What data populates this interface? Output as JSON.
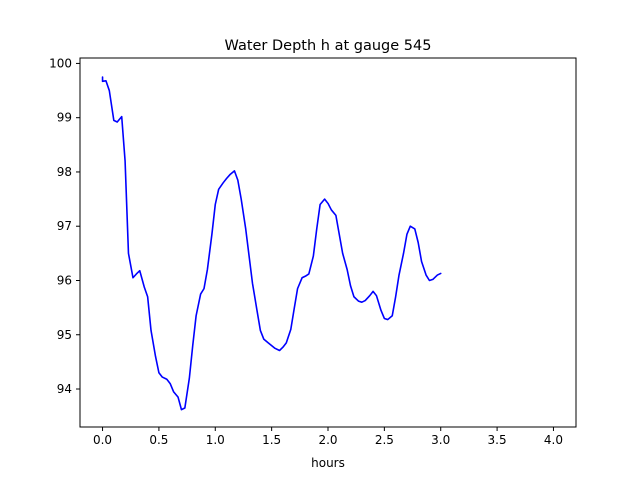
{
  "chart_data": {
    "type": "line",
    "title": "Water Depth h at gauge 545",
    "xlabel": "hours",
    "ylabel": "",
    "xlim": [
      -0.2,
      4.2
    ],
    "ylim": [
      93.3,
      100.1
    ],
    "xticks": [
      0.0,
      0.5,
      1.0,
      1.5,
      2.0,
      2.5,
      3.0,
      3.5,
      4.0
    ],
    "xtick_labels": [
      "0.0",
      "0.5",
      "1.0",
      "1.5",
      "2.0",
      "2.5",
      "3.0",
      "3.5",
      "4.0"
    ],
    "yticks": [
      94,
      95,
      96,
      97,
      98,
      99,
      100
    ],
    "ytick_labels": [
      "94",
      "95",
      "96",
      "97",
      "98",
      "99",
      "100"
    ],
    "grid": false,
    "series": [
      {
        "color": "#0000ff",
        "points": [
          [
            0.0,
            99.75
          ],
          [
            0.0,
            99.67
          ],
          [
            0.03,
            99.68
          ],
          [
            0.06,
            99.5
          ],
          [
            0.1,
            98.95
          ],
          [
            0.13,
            98.92
          ],
          [
            0.17,
            99.02
          ],
          [
            0.2,
            98.2
          ],
          [
            0.23,
            96.5
          ],
          [
            0.27,
            96.05
          ],
          [
            0.3,
            96.12
          ],
          [
            0.33,
            96.18
          ],
          [
            0.37,
            95.88
          ],
          [
            0.4,
            95.7
          ],
          [
            0.43,
            95.08
          ],
          [
            0.47,
            94.6
          ],
          [
            0.5,
            94.3
          ],
          [
            0.53,
            94.22
          ],
          [
            0.57,
            94.18
          ],
          [
            0.6,
            94.1
          ],
          [
            0.63,
            93.95
          ],
          [
            0.67,
            93.85
          ],
          [
            0.7,
            93.62
          ],
          [
            0.73,
            93.65
          ],
          [
            0.77,
            94.2
          ],
          [
            0.8,
            94.8
          ],
          [
            0.83,
            95.35
          ],
          [
            0.87,
            95.75
          ],
          [
            0.9,
            95.85
          ],
          [
            0.93,
            96.2
          ],
          [
            0.97,
            96.85
          ],
          [
            1.0,
            97.4
          ],
          [
            1.03,
            97.68
          ],
          [
            1.07,
            97.8
          ],
          [
            1.1,
            97.88
          ],
          [
            1.13,
            97.95
          ],
          [
            1.17,
            98.02
          ],
          [
            1.2,
            97.85
          ],
          [
            1.23,
            97.5
          ],
          [
            1.27,
            96.95
          ],
          [
            1.3,
            96.45
          ],
          [
            1.33,
            95.95
          ],
          [
            1.37,
            95.45
          ],
          [
            1.4,
            95.08
          ],
          [
            1.43,
            94.92
          ],
          [
            1.47,
            94.85
          ],
          [
            1.5,
            94.8
          ],
          [
            1.53,
            94.75
          ],
          [
            1.57,
            94.71
          ],
          [
            1.6,
            94.77
          ],
          [
            1.63,
            94.85
          ],
          [
            1.67,
            95.1
          ],
          [
            1.7,
            95.48
          ],
          [
            1.73,
            95.85
          ],
          [
            1.77,
            96.05
          ],
          [
            1.8,
            96.08
          ],
          [
            1.83,
            96.12
          ],
          [
            1.87,
            96.45
          ],
          [
            1.9,
            96.95
          ],
          [
            1.93,
            97.4
          ],
          [
            1.97,
            97.5
          ],
          [
            2.0,
            97.42
          ],
          [
            2.03,
            97.3
          ],
          [
            2.07,
            97.2
          ],
          [
            2.1,
            96.85
          ],
          [
            2.13,
            96.5
          ],
          [
            2.17,
            96.2
          ],
          [
            2.2,
            95.9
          ],
          [
            2.23,
            95.7
          ],
          [
            2.27,
            95.62
          ],
          [
            2.3,
            95.6
          ],
          [
            2.33,
            95.63
          ],
          [
            2.37,
            95.72
          ],
          [
            2.4,
            95.8
          ],
          [
            2.43,
            95.72
          ],
          [
            2.47,
            95.45
          ],
          [
            2.5,
            95.3
          ],
          [
            2.53,
            95.28
          ],
          [
            2.57,
            95.35
          ],
          [
            2.6,
            95.7
          ],
          [
            2.63,
            96.1
          ],
          [
            2.67,
            96.5
          ],
          [
            2.7,
            96.85
          ],
          [
            2.73,
            97.0
          ],
          [
            2.77,
            96.95
          ],
          [
            2.8,
            96.7
          ],
          [
            2.83,
            96.35
          ],
          [
            2.87,
            96.1
          ],
          [
            2.9,
            96.0
          ],
          [
            2.93,
            96.02
          ],
          [
            2.97,
            96.1
          ],
          [
            3.0,
            96.13
          ]
        ]
      }
    ]
  }
}
